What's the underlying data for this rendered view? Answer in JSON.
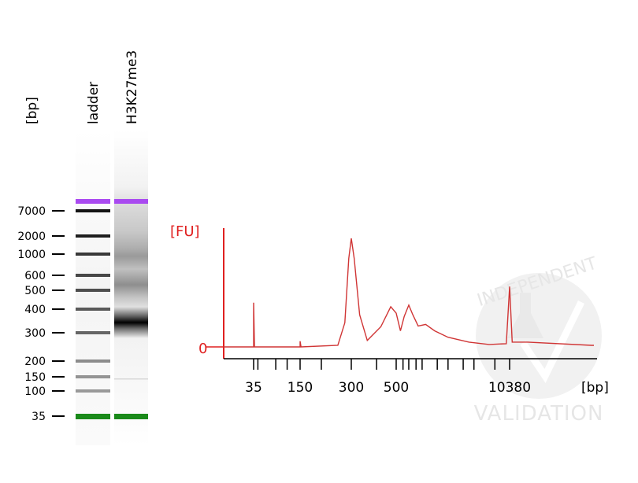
{
  "colors": {
    "trace": "#d03535",
    "axis_y": "#e02020",
    "axis_x": "#000000",
    "upper_marker": "#a94af0",
    "lower_marker": "#1a8a1a",
    "watermark": "#e6e6e6"
  },
  "gel": {
    "unit_label": "[bp]",
    "lane_labels": [
      "ladder",
      "H3K27me3"
    ],
    "size_labels": [
      "7000",
      "2000",
      "1000",
      "600",
      "500",
      "400",
      "300",
      "200",
      "150",
      "100",
      "35"
    ],
    "ladder_bands": [
      {
        "bp": 7000,
        "intensity": 0.92
      },
      {
        "bp": 2000,
        "intensity": 0.88
      },
      {
        "bp": 1000,
        "intensity": 0.78
      },
      {
        "bp": 600,
        "intensity": 0.72
      },
      {
        "bp": 500,
        "intensity": 0.7
      },
      {
        "bp": 400,
        "intensity": 0.65
      },
      {
        "bp": 300,
        "intensity": 0.6
      },
      {
        "bp": 200,
        "intensity": 0.45
      },
      {
        "bp": 150,
        "intensity": 0.42
      },
      {
        "bp": 100,
        "intensity": 0.4
      }
    ],
    "markers": {
      "upper": "upper_marker",
      "lower": "lower_marker"
    }
  },
  "watermark": {
    "top_text": "INDEPENDENT",
    "bottom_text": "VALIDATION"
  },
  "chart_data": {
    "type": "line",
    "title": "",
    "ylabel": "[FU]",
    "xlabel": "[bp]",
    "y_tick_labels": [
      "0"
    ],
    "x_tick_labels": [
      "35",
      "150",
      "300",
      "500",
      "10380"
    ],
    "grid": false,
    "series": [
      {
        "name": "H3K27me3",
        "points": [
          [
            35,
            0
          ],
          [
            35,
            55
          ],
          [
            36,
            0
          ],
          [
            150,
            0
          ],
          [
            150,
            7
          ],
          [
            152,
            0
          ],
          [
            250,
            2
          ],
          [
            275,
            30
          ],
          [
            290,
            110
          ],
          [
            300,
            135
          ],
          [
            310,
            110
          ],
          [
            330,
            40
          ],
          [
            360,
            8
          ],
          [
            420,
            25
          ],
          [
            470,
            50
          ],
          [
            500,
            42
          ],
          [
            560,
            20
          ],
          [
            620,
            38
          ],
          [
            700,
            52
          ],
          [
            780,
            40
          ],
          [
            900,
            26
          ],
          [
            1100,
            28
          ],
          [
            1400,
            20
          ],
          [
            2000,
            12
          ],
          [
            3500,
            6
          ],
          [
            6000,
            3
          ],
          [
            9500,
            4
          ],
          [
            10380,
            75
          ],
          [
            10600,
            6
          ],
          [
            12000,
            6
          ],
          [
            20000,
            2
          ]
        ]
      }
    ]
  }
}
